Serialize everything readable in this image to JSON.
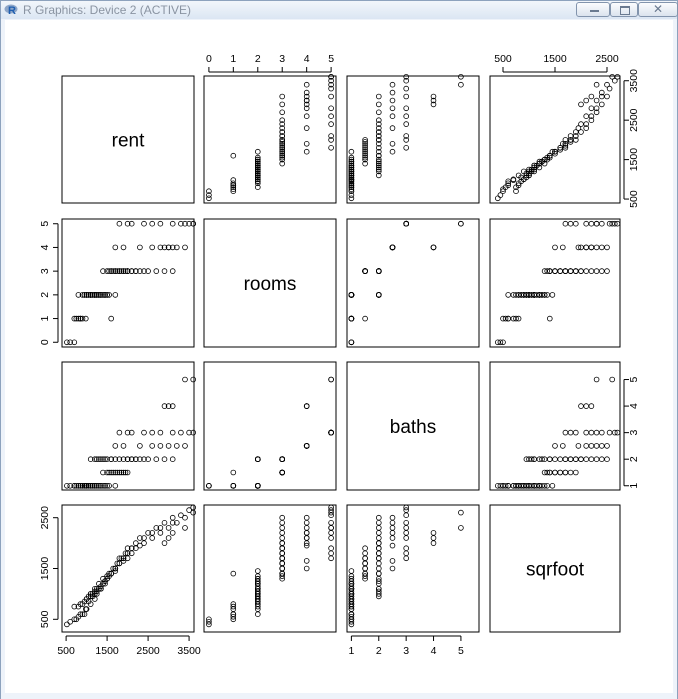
{
  "window": {
    "title": "R Graphics: Device 2 (ACTIVE)",
    "app_icon": "r-logo-icon",
    "controls": [
      "minimize-icon",
      "maximize-icon",
      "close-icon"
    ],
    "close_label": "✕"
  },
  "chart_data": {
    "type": "scatter",
    "subtype": "scatterplot-matrix",
    "variables": [
      "rent",
      "rooms",
      "baths",
      "sqrfoot"
    ],
    "axis_ticks": {
      "rent": [
        500,
        1500,
        2500,
        3500
      ],
      "rooms": [
        0,
        1,
        2,
        3,
        4,
        5
      ],
      "baths": [
        1,
        2,
        3,
        4,
        5
      ],
      "sqrfoot": [
        500,
        1500,
        2500
      ]
    },
    "axis_ranges": {
      "rent": [
        400,
        3620
      ],
      "rooms": [
        -0.2,
        5.2
      ],
      "baths": [
        0.84,
        5.66
      ],
      "sqrfoot": [
        250,
        2750
      ]
    },
    "point_style": "open-circle",
    "grid": false,
    "data": {
      "rent": [
        520,
        600,
        700,
        800,
        900,
        980,
        700,
        850,
        950,
        1000,
        1100,
        1200,
        1050,
        1150,
        800,
        900,
        1000,
        1100,
        1200,
        1300,
        1400,
        1500,
        1250,
        1350,
        1450,
        950,
        1050,
        1150,
        1250,
        1350,
        1450,
        1550,
        1600,
        1700,
        1800,
        1900,
        1400,
        1500,
        1550,
        1650,
        1750,
        1850,
        1950,
        2000,
        1300,
        1200,
        1100,
        1000,
        1600,
        1700,
        1800,
        1900,
        2000,
        2200,
        2100,
        2300,
        2500,
        2700,
        2900,
        3100,
        1250,
        1300,
        1400,
        1450,
        1500,
        1600,
        2000,
        2100,
        2200,
        2400,
        1900,
        2600,
        2800,
        3000,
        3200,
        3400,
        1700,
        2300,
        1800,
        2000,
        2100,
        2400,
        2600,
        2800,
        3100,
        3300,
        3500,
        3600,
        750,
        850,
        1700,
        2900,
        3000,
        3100,
        3400,
        3600,
        1100,
        1200,
        1350
      ],
      "rooms": [
        0,
        0,
        0,
        1,
        1,
        1,
        1,
        1,
        2,
        2,
        2,
        2,
        2,
        2,
        2,
        2,
        2,
        2,
        2,
        2,
        2,
        2,
        2,
        2,
        2,
        2,
        2,
        2,
        2,
        2,
        2,
        2,
        1,
        3,
        3,
        3,
        3,
        3,
        3,
        3,
        3,
        3,
        3,
        3,
        2,
        2,
        2,
        2,
        3,
        3,
        3,
        3,
        3,
        3,
        3,
        3,
        3,
        3,
        3,
        3,
        2,
        2,
        2,
        2,
        2,
        3,
        3,
        3,
        3,
        3,
        4,
        4,
        4,
        4,
        4,
        4,
        4,
        4,
        5,
        5,
        5,
        5,
        5,
        5,
        5,
        5,
        5,
        5,
        1,
        1,
        2,
        4,
        4,
        4,
        5,
        5,
        2,
        2,
        2
      ],
      "baths": [
        1,
        1,
        1,
        1,
        1,
        1,
        1,
        1,
        1,
        1,
        1,
        1,
        1,
        1,
        1,
        1,
        1,
        1,
        1,
        1,
        1,
        1,
        1,
        1,
        1,
        1,
        1,
        1,
        1,
        1,
        1,
        1,
        1.5,
        1.5,
        1.5,
        1.5,
        1.5,
        1.5,
        1.5,
        1.5,
        1.5,
        1.5,
        1.5,
        1.5,
        1,
        1,
        1,
        1,
        2,
        2,
        2,
        2,
        2,
        2,
        2,
        2,
        2,
        2,
        2,
        2,
        2,
        2,
        2,
        2,
        2,
        2,
        2,
        2,
        2,
        2,
        2.5,
        2.5,
        2.5,
        2.5,
        2.5,
        2.5,
        2.5,
        2.5,
        3,
        3,
        3,
        3,
        3,
        3,
        3,
        3,
        3,
        3,
        1,
        1,
        1,
        4,
        4,
        4,
        5,
        5,
        2,
        2,
        2
      ],
      "sqrfoot": [
        400,
        450,
        500,
        550,
        600,
        700,
        750,
        800,
        600,
        700,
        800,
        900,
        850,
        950,
        750,
        800,
        900,
        1000,
        1050,
        1100,
        1200,
        1300,
        1000,
        1100,
        1200,
        850,
        950,
        1000,
        1100,
        1150,
        1250,
        1350,
        1400,
        1500,
        1600,
        1700,
        1300,
        1350,
        1400,
        1500,
        1600,
        1700,
        1800,
        1900,
        1200,
        1100,
        1000,
        900,
        1400,
        1500,
        1600,
        1700,
        1800,
        2000,
        1900,
        2100,
        2200,
        2300,
        2400,
        2500,
        1050,
        1100,
        1200,
        1250,
        1300,
        1400,
        1700,
        1800,
        1900,
        2000,
        1650,
        2100,
        2200,
        2300,
        2400,
        2500,
        1500,
        1950,
        1700,
        1800,
        1900,
        2100,
        2200,
        2300,
        2400,
        2550,
        2650,
        2700,
        500,
        600,
        1450,
        2000,
        2100,
        2200,
        2300,
        2600,
        950,
        1000,
        1100
      ]
    }
  }
}
